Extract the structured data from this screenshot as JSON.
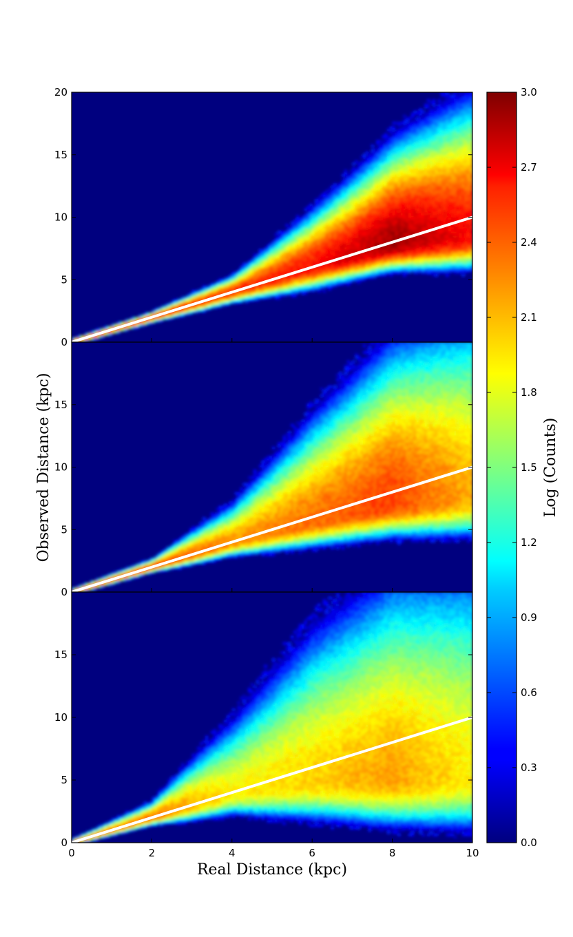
{
  "chart_data": {
    "type": "heatmap",
    "title": "",
    "xlabel": "Real Distance (kpc)",
    "ylabel": "Observed Distance (kpc)",
    "xlim": [
      0,
      10
    ],
    "ylim": [
      0,
      20
    ],
    "x_ticks": [
      "0",
      "2",
      "4",
      "6",
      "8",
      "10"
    ],
    "grid": false,
    "colormap": "jet",
    "reference_line": {
      "x": [
        0,
        10
      ],
      "y": [
        0,
        10
      ],
      "color": "#ffffff"
    },
    "panels": [
      {
        "name": "",
        "y_ticks": [
          "0",
          "5",
          "10",
          "15",
          "20"
        ],
        "peak": {
          "x": 8.0,
          "y": 8.0
        },
        "distribution": [
          {
            "real_distance": 2,
            "observed_center": 2.0,
            "observed_spread_low": 0.2,
            "observed_spread_high": 0.2,
            "log_counts_peak": 2.6
          },
          {
            "real_distance": 4,
            "observed_center": 4.0,
            "observed_spread_low": 0.4,
            "observed_spread_high": 0.6,
            "log_counts_peak": 2.5
          },
          {
            "real_distance": 6,
            "observed_center": 6.0,
            "observed_spread_low": 0.8,
            "observed_spread_high": 2.0,
            "log_counts_peak": 2.6
          },
          {
            "real_distance": 8,
            "observed_center": 7.8,
            "observed_spread_low": 0.9,
            "observed_spread_high": 3.5,
            "log_counts_peak": 2.9
          },
          {
            "real_distance": 10,
            "observed_center": 8.5,
            "observed_spread_low": 1.2,
            "observed_spread_high": 5.0,
            "log_counts_peak": 2.6
          }
        ]
      },
      {
        "name": "",
        "y_ticks": [
          "0",
          "5",
          "10",
          "15"
        ],
        "peak": {
          "x": 7.5,
          "y": 7.0
        },
        "distribution": [
          {
            "real_distance": 2,
            "observed_center": 2.0,
            "observed_spread_low": 0.2,
            "observed_spread_high": 0.3,
            "log_counts_peak": 2.5
          },
          {
            "real_distance": 4,
            "observed_center": 3.9,
            "observed_spread_low": 0.5,
            "observed_spread_high": 1.5,
            "log_counts_peak": 2.2
          },
          {
            "real_distance": 6,
            "observed_center": 5.5,
            "observed_spread_low": 0.9,
            "observed_spread_high": 4.0,
            "log_counts_peak": 2.3
          },
          {
            "real_distance": 8,
            "observed_center": 7.0,
            "observed_spread_low": 1.2,
            "observed_spread_high": 6.0,
            "log_counts_peak": 2.45
          },
          {
            "real_distance": 10,
            "observed_center": 7.5,
            "observed_spread_low": 1.5,
            "observed_spread_high": 7.5,
            "log_counts_peak": 2.1
          }
        ]
      },
      {
        "name": "",
        "y_ticks": [
          "0",
          "5",
          "10",
          "15"
        ],
        "peak": {
          "x": 7.3,
          "y": 5.0
        },
        "distribution": [
          {
            "real_distance": 2,
            "observed_center": 2.0,
            "observed_spread_low": 0.3,
            "observed_spread_high": 0.6,
            "log_counts_peak": 2.3
          },
          {
            "real_distance": 4,
            "observed_center": 3.8,
            "observed_spread_low": 0.8,
            "observed_spread_high": 3.0,
            "log_counts_peak": 1.9
          },
          {
            "real_distance": 6,
            "observed_center": 4.8,
            "observed_spread_low": 1.5,
            "observed_spread_high": 6.0,
            "log_counts_peak": 2.0
          },
          {
            "real_distance": 8,
            "observed_center": 5.0,
            "observed_spread_low": 1.8,
            "observed_spread_high": 8.0,
            "log_counts_peak": 2.15
          },
          {
            "real_distance": 10,
            "observed_center": 5.0,
            "observed_spread_low": 2.0,
            "observed_spread_high": 9.0,
            "log_counts_peak": 1.9
          }
        ]
      }
    ],
    "colorbar": {
      "label": "Log (Counts)",
      "range": [
        0.0,
        3.0
      ],
      "ticks": [
        "0.0",
        "0.3",
        "0.6",
        "0.9",
        "1.2",
        "1.5",
        "1.8",
        "2.1",
        "2.4",
        "2.7",
        "3.0"
      ]
    }
  }
}
